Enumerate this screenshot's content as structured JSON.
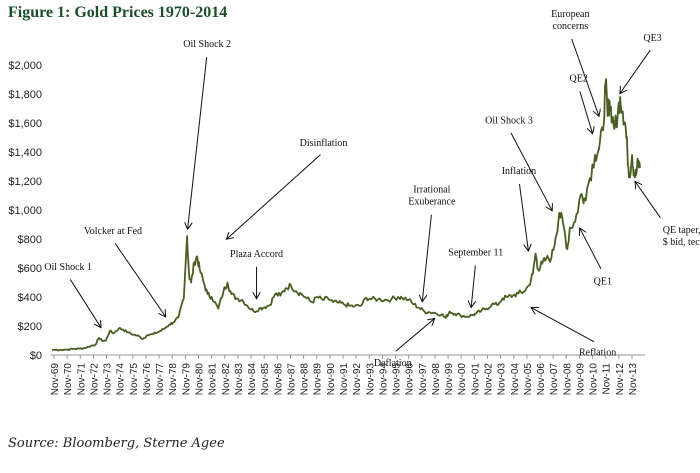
{
  "title": "Figure 1: Gold Prices 1970-2014",
  "source": "Source: Bloomberg, Sterne Agee",
  "chart_data": {
    "type": "line",
    "title": "Figure 1: Gold Prices 1970-2014",
    "xlabel": "",
    "ylabel": "",
    "ylim": [
      0,
      2000
    ],
    "xlim": [
      1969.83,
      2014.3
    ],
    "grid": false,
    "line_color": "#4a5e23",
    "yticks": [
      {
        "value": 0,
        "label": "$0"
      },
      {
        "value": 200,
        "label": "$200"
      },
      {
        "value": 400,
        "label": "$400"
      },
      {
        "value": 600,
        "label": "$600"
      },
      {
        "value": 800,
        "label": "$800"
      },
      {
        "value": 1000,
        "label": "$1,000"
      },
      {
        "value": 1200,
        "label": "$1,200"
      },
      {
        "value": 1400,
        "label": "$1,400"
      },
      {
        "value": 1600,
        "label": "$1,600"
      },
      {
        "value": 1800,
        "label": "$1,800"
      },
      {
        "value": 2000,
        "label": "$2,000"
      }
    ],
    "xticks": [
      "Nov-69",
      "Nov-70",
      "Nov-71",
      "Nov-72",
      "Nov-73",
      "Nov-74",
      "Nov-75",
      "Nov-76",
      "Nov-77",
      "Nov-78",
      "Nov-79",
      "Nov-80",
      "Nov-81",
      "Nov-82",
      "Nov-83",
      "Nov-84",
      "Nov-85",
      "Nov-86",
      "Nov-87",
      "Nov-88",
      "Nov-89",
      "Nov-90",
      "Nov-91",
      "Nov-92",
      "Nov-93",
      "Nov-94",
      "Nov-95",
      "Nov-96",
      "Nov-97",
      "Nov-98",
      "Nov-99",
      "Nov-00",
      "Nov-01",
      "Nov-02",
      "Nov-03",
      "Nov-04",
      "Nov-05",
      "Nov-06",
      "Nov-07",
      "Nov-08",
      "Nov-09",
      "Nov-10",
      "Nov-11",
      "Nov-12",
      "Nov-13"
    ],
    "series": [
      {
        "name": "Gold Price",
        "points": [
          [
            1969.83,
            35
          ],
          [
            1970.5,
            36
          ],
          [
            1971.0,
            38
          ],
          [
            1971.5,
            42
          ],
          [
            1971.9,
            44
          ],
          [
            1972.3,
            48
          ],
          [
            1972.8,
            64
          ],
          [
            1973.1,
            70
          ],
          [
            1973.4,
            118
          ],
          [
            1973.6,
            100
          ],
          [
            1973.9,
            98
          ],
          [
            1974.2,
            165
          ],
          [
            1974.5,
            150
          ],
          [
            1974.9,
            185
          ],
          [
            1975.2,
            175
          ],
          [
            1975.6,
            155
          ],
          [
            1976.0,
            140
          ],
          [
            1976.4,
            130
          ],
          [
            1976.7,
            110
          ],
          [
            1977.0,
            135
          ],
          [
            1977.5,
            145
          ],
          [
            1977.9,
            160
          ],
          [
            1978.3,
            180
          ],
          [
            1978.7,
            210
          ],
          [
            1979.0,
            225
          ],
          [
            1979.4,
            260
          ],
          [
            1979.8,
            390
          ],
          [
            1980.05,
            820
          ],
          [
            1980.2,
            550
          ],
          [
            1980.35,
            500
          ],
          [
            1980.6,
            640
          ],
          [
            1980.8,
            680
          ],
          [
            1981.0,
            590
          ],
          [
            1981.3,
            500
          ],
          [
            1981.6,
            420
          ],
          [
            1981.9,
            400
          ],
          [
            1982.4,
            320
          ],
          [
            1982.8,
            440
          ],
          [
            1983.1,
            500
          ],
          [
            1983.4,
            420
          ],
          [
            1983.8,
            390
          ],
          [
            1984.2,
            380
          ],
          [
            1984.6,
            340
          ],
          [
            1985.1,
            300
          ],
          [
            1985.5,
            320
          ],
          [
            1985.9,
            330
          ],
          [
            1986.3,
            345
          ],
          [
            1986.7,
            420
          ],
          [
            1987.1,
            410
          ],
          [
            1987.5,
            460
          ],
          [
            1987.9,
            480
          ],
          [
            1988.3,
            440
          ],
          [
            1988.7,
            420
          ],
          [
            1989.1,
            390
          ],
          [
            1989.5,
            365
          ],
          [
            1989.9,
            400
          ],
          [
            1990.3,
            380
          ],
          [
            1990.7,
            390
          ],
          [
            1991.1,
            365
          ],
          [
            1991.5,
            360
          ],
          [
            1991.9,
            350
          ],
          [
            1992.3,
            340
          ],
          [
            1992.7,
            335
          ],
          [
            1993.2,
            340
          ],
          [
            1993.6,
            395
          ],
          [
            1994.0,
            385
          ],
          [
            1994.5,
            385
          ],
          [
            1995.0,
            380
          ],
          [
            1995.5,
            385
          ],
          [
            1996.0,
            400
          ],
          [
            1996.3,
            395
          ],
          [
            1996.8,
            380
          ],
          [
            1997.2,
            350
          ],
          [
            1997.6,
            325
          ],
          [
            1998.0,
            300
          ],
          [
            1998.4,
            295
          ],
          [
            1998.8,
            290
          ],
          [
            1999.3,
            280
          ],
          [
            1999.6,
            255
          ],
          [
            1999.9,
            300
          ],
          [
            2000.3,
            285
          ],
          [
            2000.7,
            275
          ],
          [
            2001.2,
            265
          ],
          [
            2001.6,
            275
          ],
          [
            2001.9,
            285
          ],
          [
            2002.3,
            305
          ],
          [
            2002.7,
            320
          ],
          [
            2003.1,
            350
          ],
          [
            2003.5,
            345
          ],
          [
            2003.9,
            390
          ],
          [
            2004.3,
            400
          ],
          [
            2004.7,
            410
          ],
          [
            2005.1,
            425
          ],
          [
            2005.5,
            435
          ],
          [
            2005.9,
            480
          ],
          [
            2006.2,
            560
          ],
          [
            2006.4,
            700
          ],
          [
            2006.6,
            590
          ],
          [
            2006.9,
            630
          ],
          [
            2007.2,
            660
          ],
          [
            2007.6,
            670
          ],
          [
            2007.9,
            800
          ],
          [
            2008.2,
            980
          ],
          [
            2008.5,
            900
          ],
          [
            2008.8,
            730
          ],
          [
            2009.0,
            880
          ],
          [
            2009.4,
            920
          ],
          [
            2009.8,
            1100
          ],
          [
            2010.1,
            1080
          ],
          [
            2010.5,
            1220
          ],
          [
            2010.9,
            1380
          ],
          [
            2011.2,
            1420
          ],
          [
            2011.5,
            1550
          ],
          [
            2011.7,
            1880
          ],
          [
            2011.85,
            1650
          ],
          [
            2012.0,
            1750
          ],
          [
            2012.2,
            1640
          ],
          [
            2012.4,
            1570
          ],
          [
            2012.6,
            1640
          ],
          [
            2012.8,
            1780
          ],
          [
            2013.0,
            1680
          ],
          [
            2013.2,
            1580
          ],
          [
            2013.35,
            1400
          ],
          [
            2013.5,
            1230
          ],
          [
            2013.7,
            1380
          ],
          [
            2013.85,
            1250
          ],
          [
            2014.0,
            1240
          ],
          [
            2014.15,
            1330
          ],
          [
            2014.3,
            1290
          ]
        ]
      }
    ],
    "annotations": [
      {
        "label": [
          "Oil Shock 1"
        ],
        "target": [
          1973.7,
          165
        ]
      },
      {
        "label": [
          "Volcker at Fed"
        ],
        "target": [
          1978.6,
          240
        ]
      },
      {
        "label": [
          "Oil Shock 2"
        ],
        "target": [
          1980.05,
          840
        ]
      },
      {
        "label": [
          "Disinflation"
        ],
        "target": [
          1982.8,
          780
        ]
      },
      {
        "label": [
          "Plaza Accord"
        ],
        "target": [
          1985.3,
          360
        ]
      },
      {
        "label": [
          "Irrational",
          "Exuberance"
        ],
        "target": [
          1997.8,
          340
        ]
      },
      {
        "label": [
          "September 11"
        ],
        "target": [
          2001.5,
          300
        ]
      },
      {
        "label": [
          "Deflation"
        ],
        "target": [
          1999.0,
          270
        ]
      },
      {
        "label": [
          "Inflation"
        ],
        "target": [
          2005.9,
          690
        ]
      },
      {
        "label": [
          "Oil Shock 3"
        ],
        "target": [
          2007.8,
          970
        ]
      },
      {
        "label": [
          "Reflation"
        ],
        "target": [
          2005.8,
          340
        ]
      },
      {
        "label": [
          "QE1"
        ],
        "target": [
          2009.6,
          900
        ]
      },
      {
        "label": [
          "QE2"
        ],
        "target": [
          2010.8,
          1500
        ]
      },
      {
        "label": [
          "European",
          "concerns"
        ],
        "target": [
          2011.3,
          1620
        ]
      },
      {
        "label": [
          "QE3"
        ],
        "target": [
          2012.6,
          1780
        ]
      },
      {
        "label": [
          "QE taper, S&P record,",
          "$ bid, technical  selling"
        ],
        "target": [
          2013.75,
          1220
        ]
      }
    ]
  }
}
